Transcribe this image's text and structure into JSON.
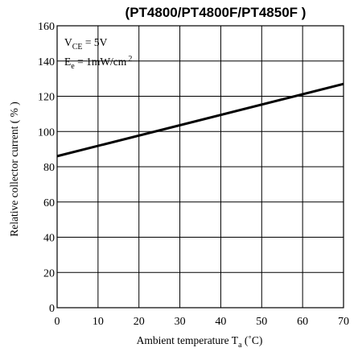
{
  "chart_data": {
    "type": "line",
    "title": "(PT4800/PT4800F/PT4850F )",
    "xlabel": {
      "main": "Ambient temperature T",
      "sub": "a",
      "unit": " (˚C)"
    },
    "ylabel": "Relative collector current ( % )",
    "xlim": [
      0,
      70
    ],
    "ylim": [
      0,
      160
    ],
    "x_ticks": [
      0,
      10,
      20,
      30,
      40,
      50,
      60,
      70
    ],
    "y_ticks": [
      0,
      20,
      40,
      60,
      80,
      100,
      120,
      140,
      160
    ],
    "grid": true,
    "annotations": {
      "line1": {
        "main": "V",
        "sub": "CE",
        "rest": " = 5V"
      },
      "line2": {
        "main": "E",
        "sub": "e",
        "rest": " = 1mW/cm",
        "sup": "2"
      }
    },
    "series": [
      {
        "x": [
          0,
          70
        ],
        "y": [
          86,
          127
        ]
      }
    ]
  }
}
